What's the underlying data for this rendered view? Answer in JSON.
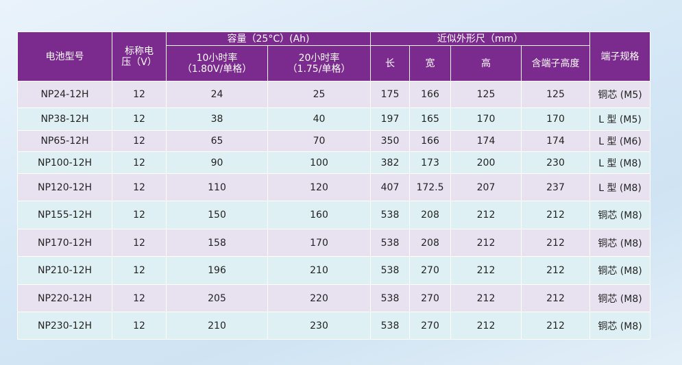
{
  "table": {
    "header": {
      "model": "电池型号",
      "voltage": "标称电压（V）",
      "capacity": "容量（25°C）(Ah)",
      "rate10": [
        "10小时率",
        "（1.80V/单格）"
      ],
      "rate20": [
        "20小时率",
        "（1.75/单格）"
      ],
      "dimensions": "近似外形尺（mm）",
      "length": "长",
      "width": "宽",
      "height": "高",
      "total_height": "含端子高度",
      "terminal": "端子规格"
    },
    "rows": [
      [
        "NP24-12H",
        12,
        24,
        25,
        175,
        166,
        125,
        125,
        "铜芯 (M5)"
      ],
      [
        "NP38-12H",
        12,
        38,
        40,
        197,
        165,
        170,
        170,
        "L 型 (M5)"
      ],
      [
        "NP65-12H",
        12,
        65,
        70,
        350,
        166,
        174,
        174,
        "L 型 (M6)"
      ],
      [
        "NP100-12H",
        12,
        90,
        100,
        382,
        173,
        200,
        230,
        "L 型 (M8)"
      ],
      [
        "NP120-12H",
        12,
        110,
        120,
        407,
        172.5,
        207,
        237,
        "L 型 (M8)"
      ],
      [
        "NP155-12H",
        12,
        150,
        160,
        538,
        208,
        212,
        212,
        "铜芯 (M8)"
      ],
      [
        "NP170-12H",
        12,
        158,
        170,
        538,
        208,
        212,
        212,
        "铜芯 (M8)"
      ],
      [
        "NP210-12H",
        12,
        196,
        210,
        538,
        270,
        212,
        212,
        "铜芯 (M8)"
      ],
      [
        "NP220-12H",
        12,
        205,
        220,
        538,
        270,
        212,
        212,
        "铜芯 (M8)"
      ],
      [
        "NP230-12H",
        12,
        210,
        230,
        538,
        270,
        212,
        212,
        "铜芯 (M8)"
      ]
    ]
  }
}
